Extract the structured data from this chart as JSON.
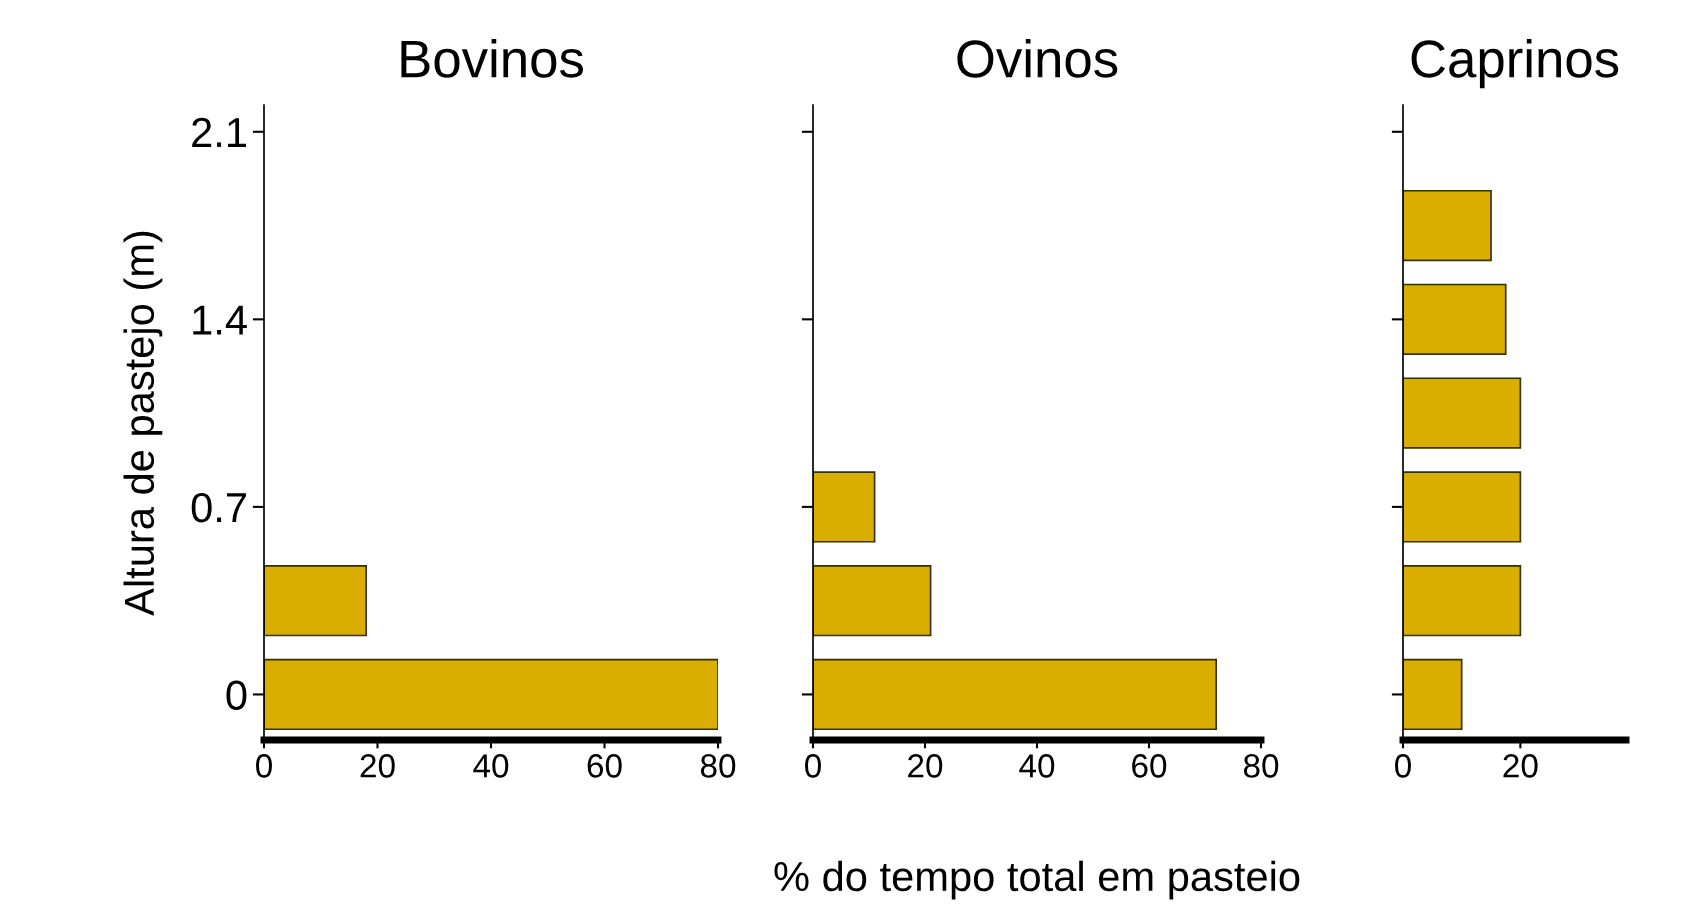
{
  "chart_data": [
    {
      "type": "bar",
      "orientation": "horizontal",
      "title": "Bovinos",
      "ylabel": "Altura de pastejo (m)",
      "x": [
        0,
        0.35
      ],
      "values": [
        80,
        18
      ],
      "color": "#d9ae00",
      "xlim": [
        0,
        80
      ],
      "xticks": [
        0,
        20,
        40,
        60,
        80
      ],
      "ylim": [
        -0.17,
        2.2
      ],
      "yticks": [
        0,
        0.7,
        1.4,
        2.1
      ],
      "grid": false
    },
    {
      "type": "bar",
      "orientation": "horizontal",
      "title": "Ovinos",
      "xlabel": "% do tempo total em pasteio",
      "x": [
        0,
        0.35,
        0.7
      ],
      "values": [
        72,
        21,
        11
      ],
      "color": "#d9ae00",
      "xlim": [
        0,
        80
      ],
      "xticks": [
        0,
        20,
        40,
        60,
        80
      ],
      "ylim": [
        -0.17,
        2.2
      ],
      "yticks": [
        0,
        0.7,
        1.4,
        2.1
      ],
      "tick_labels": "x",
      "grid": false
    },
    {
      "type": "bar",
      "orientation": "horizontal",
      "title": "Caprinos",
      "x": [
        0,
        0.35,
        0.7,
        1.05,
        1.4,
        1.75
      ],
      "values": [
        10,
        20,
        20,
        20,
        17.5,
        15
      ],
      "color": "#d9ae00",
      "xlim": [
        0,
        38
      ],
      "xticks": [
        0,
        20
      ],
      "ylim": [
        -0.17,
        2.2
      ],
      "yticks": [
        0,
        0.7,
        1.4,
        2.1
      ],
      "tick_labels": "x",
      "grid": false
    }
  ]
}
